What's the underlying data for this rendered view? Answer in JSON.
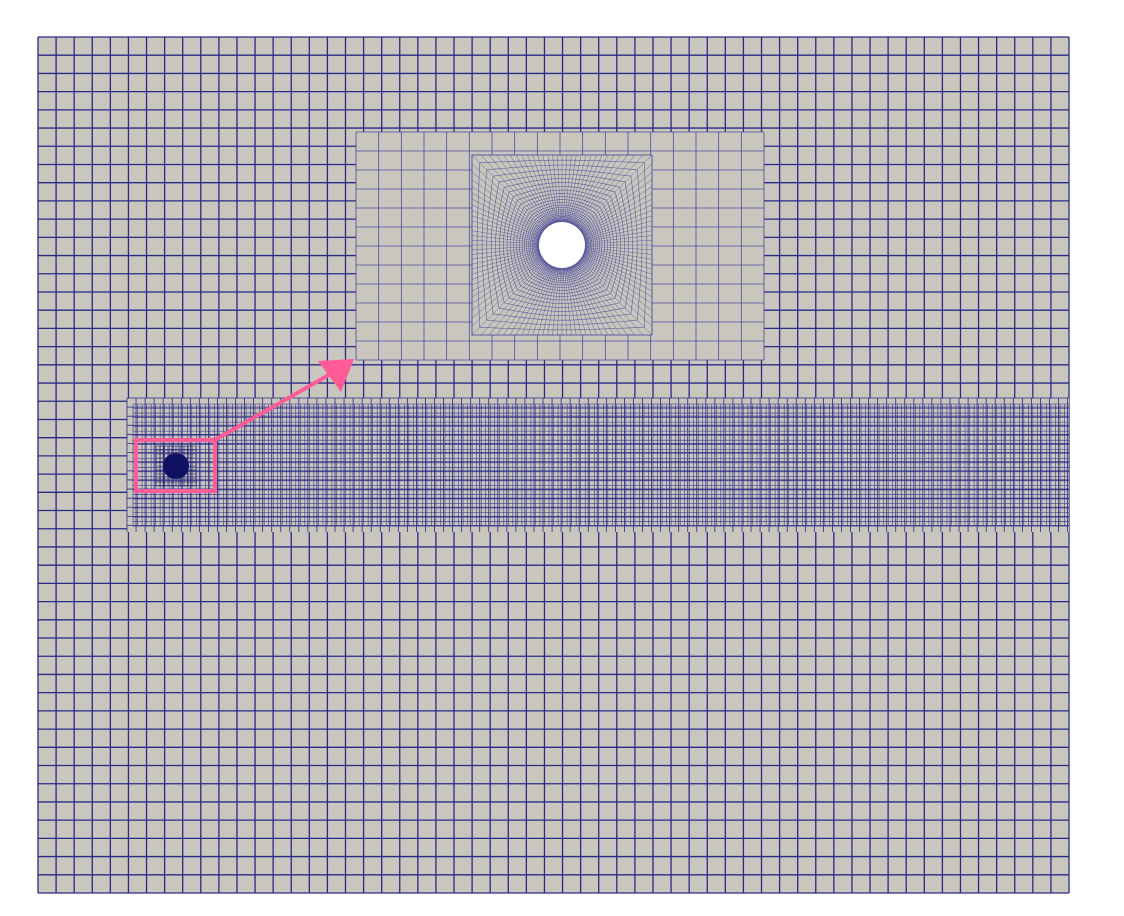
{
  "colors": {
    "background": "#ffffff",
    "cell_fill": "#c9c6bd",
    "grid_line": "#2a2a86",
    "inset_line": "#4b4b9a",
    "cylinder": "#ffffff",
    "dense_core": "#101060",
    "highlight": "#ff5b96"
  },
  "mesh": {
    "background_grid": {
      "columns": 57,
      "rows": 47
    },
    "refinement_band_level": 3,
    "cylinder": {
      "radial_layers": 28,
      "angular_divisions": 120
    }
  },
  "inset": {
    "description_icon": "zoom-arrow-icon"
  }
}
